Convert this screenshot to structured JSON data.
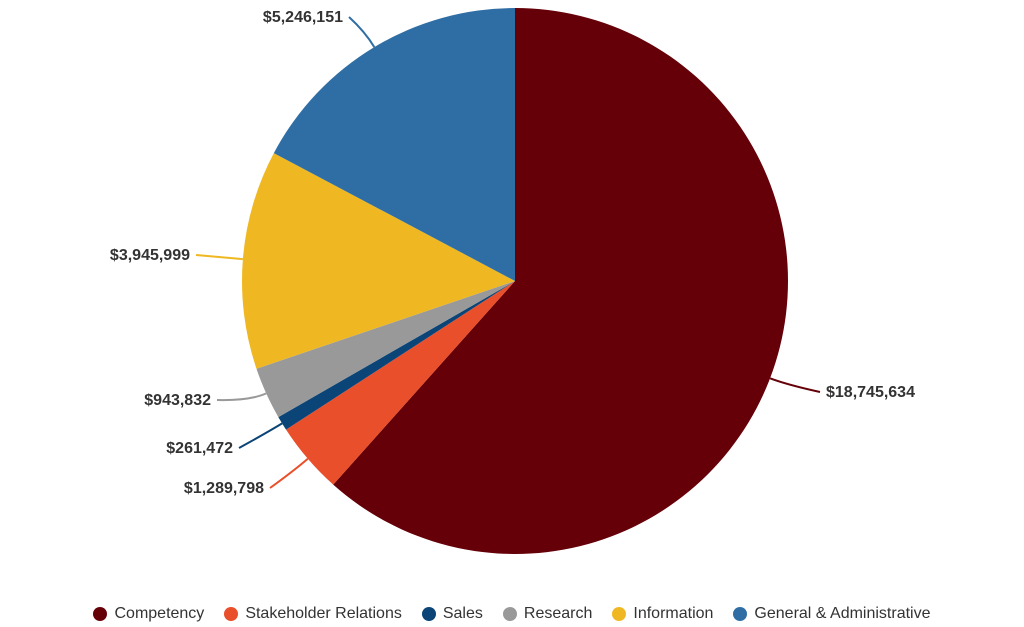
{
  "chart_data": {
    "type": "pie",
    "title": "",
    "currency_prefix": "$",
    "start_angle_deg": 0,
    "direction": "clockwise",
    "slices": [
      {
        "name": "Competency",
        "value": 18745634,
        "label": "$18,745,634",
        "color": "#650008"
      },
      {
        "name": "Stakeholder Relations",
        "value": 1289798,
        "label": "$1,289,798",
        "color": "#ea4f2b"
      },
      {
        "name": "Sales",
        "value": 261472,
        "label": "$261,472",
        "color": "#0b4476"
      },
      {
        "name": "Research",
        "value": 943832,
        "label": "$943,832",
        "color": "#999999"
      },
      {
        "name": "Information",
        "value": 3945999,
        "label": "$3,945,999",
        "color": "#efb822"
      },
      {
        "name": "General & Administrative",
        "value": 5246151,
        "label": "$5,246,151",
        "color": "#2f6ea4"
      }
    ],
    "legend": {
      "position": "bottom"
    }
  }
}
